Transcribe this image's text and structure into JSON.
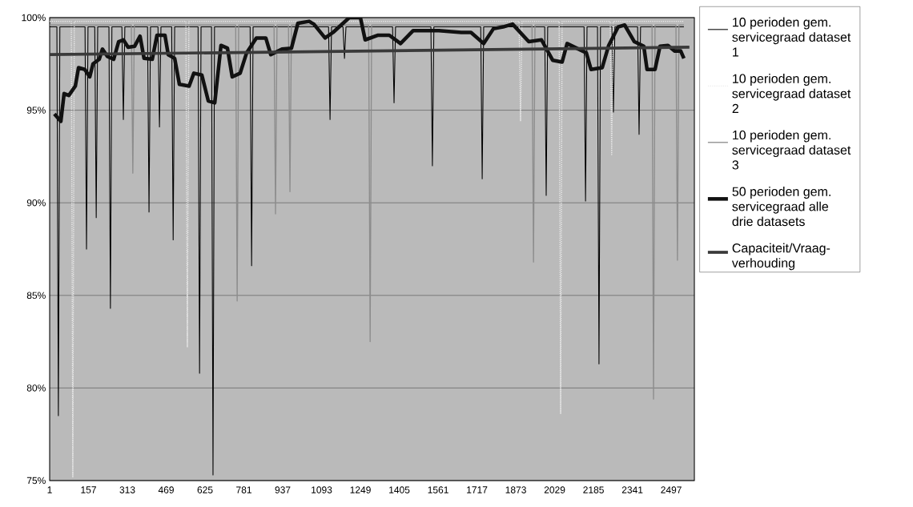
{
  "chart_data": {
    "type": "line",
    "xlim": [
      1,
      2590
    ],
    "ylim": [
      75,
      100
    ],
    "xticks": [
      1,
      157,
      313,
      469,
      625,
      781,
      937,
      1093,
      1249,
      1405,
      1561,
      1717,
      1873,
      2029,
      2185,
      2341,
      2497
    ],
    "yticks": [
      {
        "value": 75,
        "label": "75%"
      },
      {
        "value": 80,
        "label": "80%"
      },
      {
        "value": 85,
        "label": "85%"
      },
      {
        "value": 90,
        "label": "90%"
      },
      {
        "value": 95,
        "label": "95%"
      },
      {
        "value": 100,
        "label": "100%"
      }
    ],
    "grid": "y",
    "legend": "right",
    "line_style": "solid",
    "series": [
      {
        "name": "10 perioden gem. servicegraad dataset 1",
        "color": "#000000",
        "x": [
          1,
          30,
          36,
          42,
          143,
          149,
          155,
          182,
          188,
          194,
          239,
          245,
          251,
          291,
          297,
          303,
          394,
          400,
          406,
          436,
          442,
          448,
          491,
          497,
          503,
          597,
          603,
          609,
          651,
          657,
          663,
          806,
          812,
          818,
          1121,
          1127,
          1133,
          1179,
          1185,
          1191,
          1378,
          1384,
          1390,
          1532,
          1538,
          1544,
          1732,
          1738,
          1744,
          1989,
          1995,
          2001,
          2147,
          2153,
          2159,
          2201,
          2207,
          2213,
          2259,
          2265,
          2271,
          2362,
          2368,
          2374,
          2548
        ],
        "values": [
          99.5,
          99.5,
          78.5,
          99.5,
          99.5,
          87.5,
          99.5,
          99.5,
          89.2,
          99.5,
          99.5,
          84.3,
          99.5,
          99.5,
          94.5,
          99.5,
          99.5,
          89.5,
          99.5,
          99.5,
          94.1,
          99.5,
          99.5,
          88.0,
          99.5,
          99.5,
          80.8,
          99.5,
          99.5,
          75.3,
          99.5,
          99.5,
          86.6,
          99.5,
          99.5,
          94.5,
          99.5,
          99.5,
          97.8,
          99.5,
          99.5,
          95.4,
          99.5,
          99.5,
          92.0,
          99.5,
          99.5,
          91.3,
          99.5,
          99.5,
          90.4,
          99.5,
          99.5,
          90.1,
          99.5,
          99.5,
          81.3,
          99.5,
          99.5,
          94.9,
          99.5,
          99.5,
          93.7,
          99.5,
          99.5
        ]
      },
      {
        "name": "10 perioden gem. servicegraad dataset 2",
        "color": "#ececec",
        "line_style": "dotted",
        "x": [
          1,
          88,
          94,
          100,
          548,
          554,
          560,
          1886,
          1892,
          1898,
          2047,
          2053,
          2059,
          2252,
          2258,
          2264,
          2548
        ],
        "values": [
          99.8,
          99.8,
          75.2,
          99.8,
          99.8,
          82.2,
          99.8,
          99.8,
          94.4,
          99.8,
          99.8,
          78.6,
          99.8,
          99.8,
          92.6,
          99.8,
          99.8
        ]
      },
      {
        "name": "10 perioden gem. servicegraad dataset 3",
        "color": "#8c8c8c",
        "x": [
          1,
          329,
          335,
          341,
          748,
          754,
          760,
          902,
          908,
          914,
          960,
          966,
          972,
          1282,
          1288,
          1294,
          1938,
          1944,
          1950,
          2420,
          2426,
          2432,
          2516,
          2522,
          2528,
          2548
        ],
        "values": [
          99.6,
          99.6,
          91.6,
          99.6,
          99.6,
          84.7,
          99.6,
          99.6,
          89.4,
          99.6,
          99.6,
          90.6,
          99.6,
          99.6,
          82.5,
          99.6,
          99.6,
          86.8,
          99.6,
          99.6,
          79.4,
          99.6,
          99.6,
          86.9,
          99.6,
          99.6
        ]
      },
      {
        "name": "50 perioden gem. servicegraad alle drie datasets",
        "color": "#111111",
        "x": [
          20,
          46,
          59,
          78,
          104,
          117,
          142,
          162,
          175,
          200,
          213,
          233,
          258,
          278,
          297,
          316,
          342,
          364,
          380,
          413,
          432,
          464,
          477,
          503,
          522,
          561,
          580,
          612,
          638,
          664,
          689,
          715,
          734,
          766,
          792,
          831,
          869,
          889,
          934,
          972,
          998,
          1043,
          1062,
          1107,
          1139,
          1204,
          1249,
          1268,
          1320,
          1365,
          1410,
          1461,
          1513,
          1564,
          1654,
          1693,
          1744,
          1783,
          1822,
          1860,
          1925,
          1976,
          2021,
          2059,
          2079,
          2117,
          2156,
          2175,
          2220,
          2246,
          2284,
          2310,
          2349,
          2387,
          2400,
          2432,
          2452,
          2484,
          2510,
          2535,
          2548
        ],
        "values": [
          94.8,
          94.4,
          95.9,
          95.8,
          96.3,
          97.3,
          97.2,
          96.8,
          97.5,
          97.75,
          98.3,
          97.9,
          97.75,
          98.7,
          98.8,
          98.4,
          98.45,
          99.0,
          97.8,
          97.75,
          99.05,
          99.05,
          98.0,
          97.8,
          96.4,
          96.3,
          97.0,
          96.9,
          95.5,
          95.4,
          98.5,
          98.35,
          96.8,
          97.0,
          98.1,
          98.9,
          98.9,
          98.0,
          98.3,
          98.35,
          99.7,
          99.8,
          99.65,
          98.9,
          99.2,
          100.0,
          100.0,
          98.8,
          99.05,
          99.05,
          98.6,
          99.3,
          99.3,
          99.3,
          99.2,
          99.2,
          98.6,
          99.4,
          99.5,
          99.65,
          98.7,
          98.8,
          97.7,
          97.6,
          98.6,
          98.35,
          98.1,
          97.2,
          97.3,
          98.5,
          99.5,
          99.6,
          98.7,
          98.45,
          97.2,
          97.2,
          98.45,
          98.5,
          98.2,
          98.2,
          97.8
        ]
      },
      {
        "name": "Capaciteit/Vraag-verhouding",
        "color": "#3a3a3a",
        "x": [
          1,
          2570
        ],
        "values": [
          98.0,
          98.4
        ]
      }
    ]
  }
}
